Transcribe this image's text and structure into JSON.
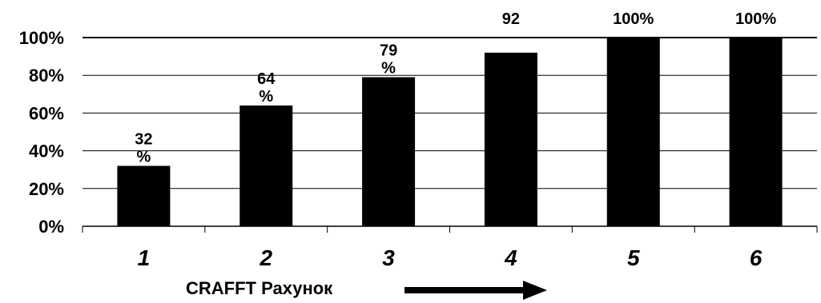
{
  "chart_data": {
    "type": "bar",
    "categories": [
      "1",
      "2",
      "3",
      "4",
      "5",
      "6"
    ],
    "values": [
      32,
      64,
      79,
      92,
      100,
      100
    ],
    "data_labels": [
      "32\n%",
      "64\n%",
      "79\n%",
      "92",
      "100%",
      "100%"
    ],
    "xlabel": "CRAFFT Рахунок",
    "ylabel": "",
    "ylim": [
      0,
      100
    ],
    "yticks": [
      "0%",
      "20%",
      "40%",
      "60%",
      "80%",
      "100%"
    ],
    "ytick_values": [
      0,
      20,
      40,
      60,
      80,
      100
    ],
    "grid": true,
    "bar_color": "#000000",
    "arrow_icon": "right-arrow-icon"
  }
}
